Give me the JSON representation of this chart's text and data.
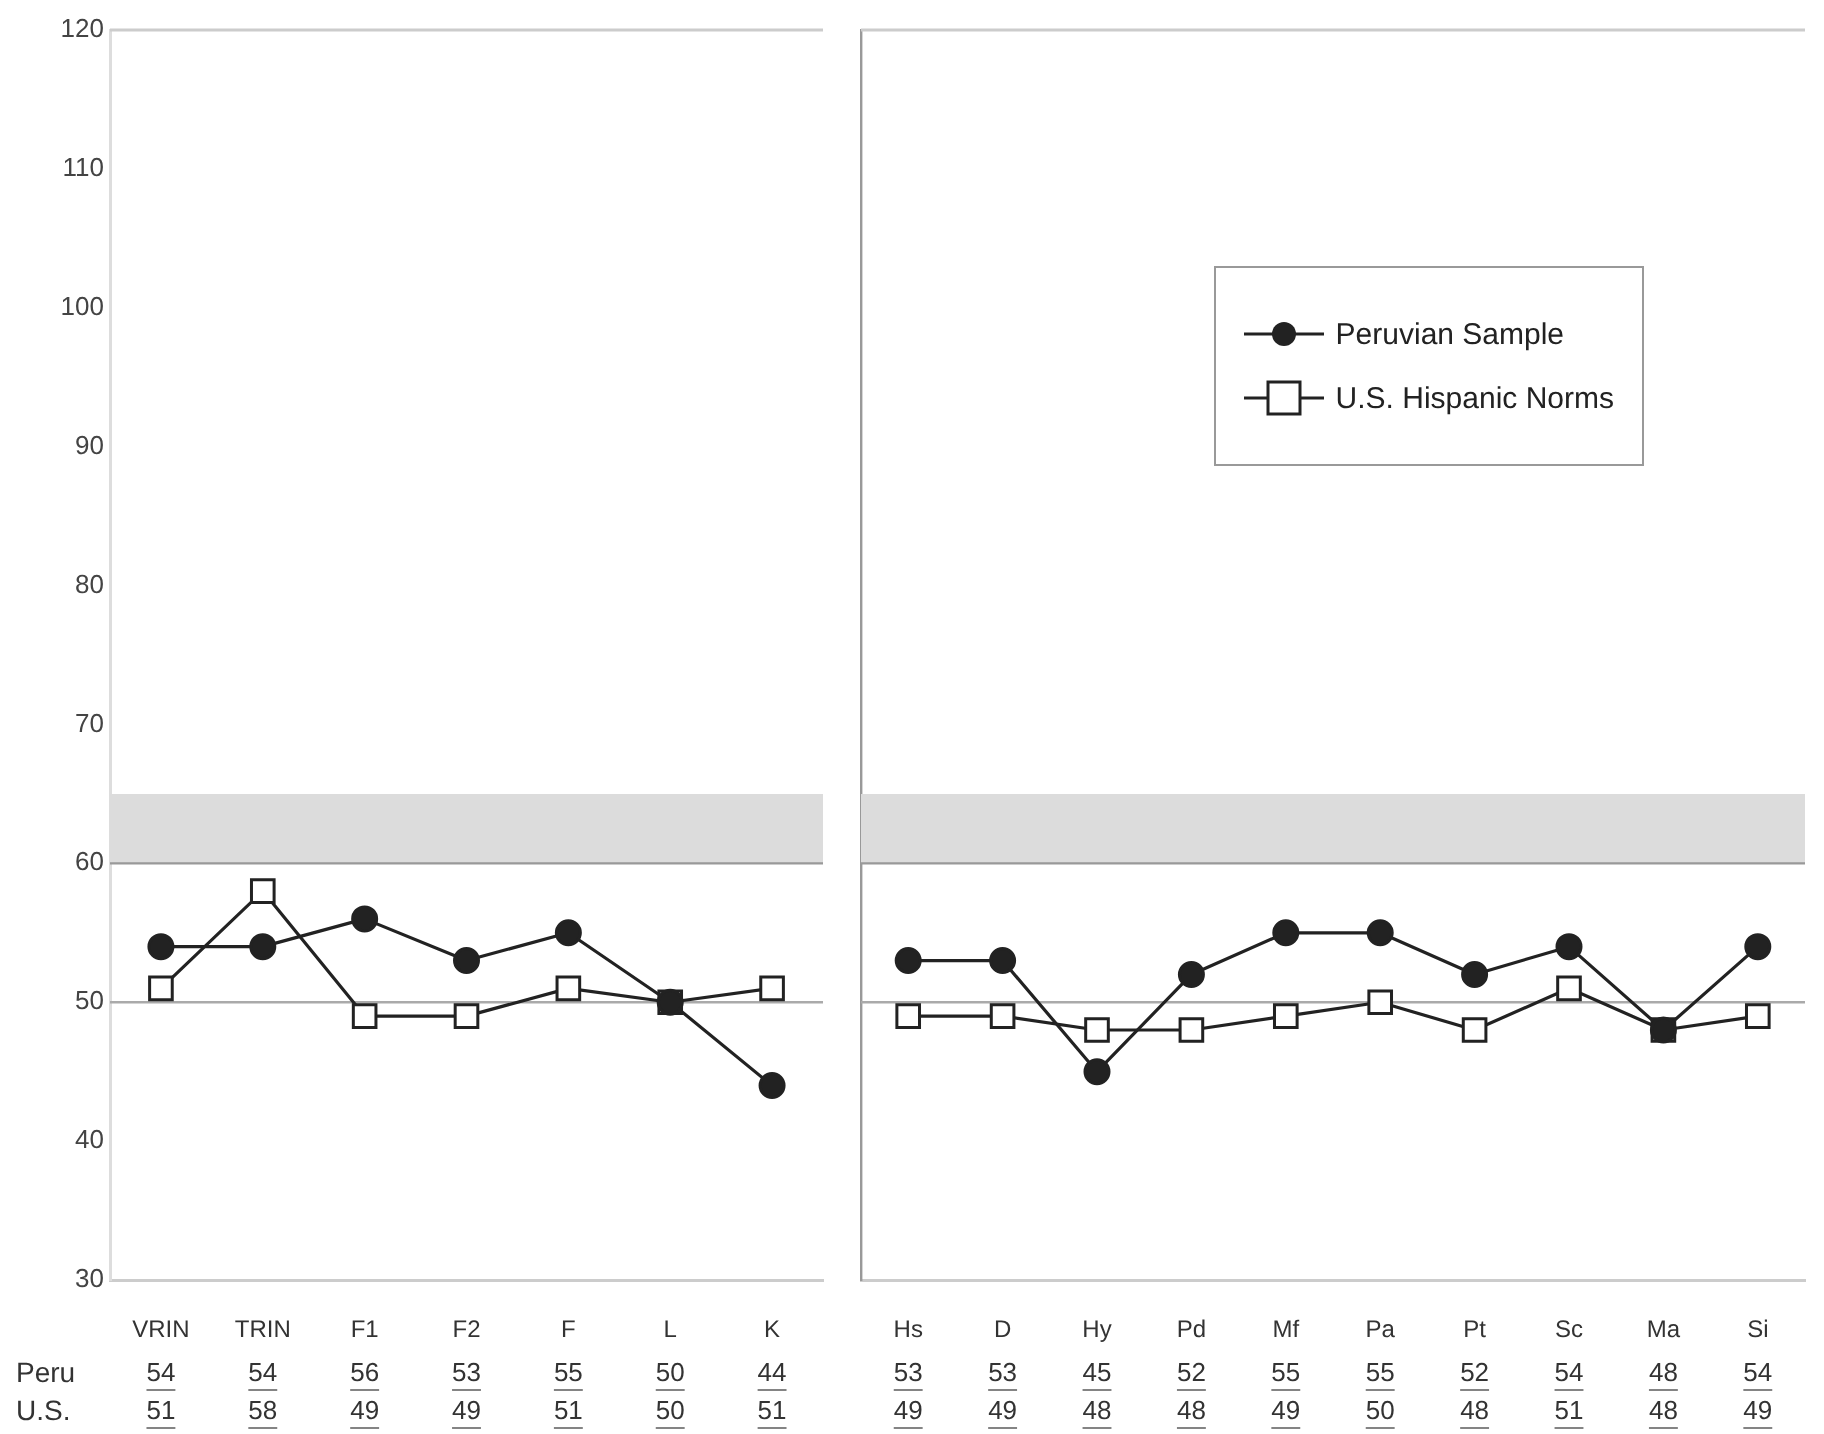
{
  "chart_data": [
    {
      "type": "line",
      "categories": [
        "VRIN",
        "TRIN",
        "F1",
        "F2",
        "F",
        "L",
        "K"
      ],
      "series": [
        {
          "color": "#222222",
          "marker": "circle",
          "values": [
            54,
            54,
            56,
            53,
            55,
            50,
            44
          ]
        },
        {
          "color": "#222222",
          "marker": "square",
          "values": [
            51,
            58,
            49,
            49,
            51,
            50,
            51
          ]
        }
      ],
      "ylim": [
        30,
        120
      ],
      "yticks": [
        30,
        40,
        50,
        60,
        70,
        80,
        90,
        100,
        110,
        120
      ],
      "grid": false,
      "legend": false,
      "data_labels": true,
      "ref_lines": [
        {
          "axis": "y",
          "value": 50,
          "color": "#aaaaaa"
        },
        {
          "axis": "y",
          "value": 60,
          "color": "#999999"
        }
      ],
      "bands": [
        {
          "axis": "y",
          "from": 60,
          "to": 65,
          "color": "#dcdcdc"
        }
      ],
      "annotations": [
        "Peru",
        "U.S."
      ]
    },
    {
      "type": "line",
      "categories": [
        "Hs",
        "D",
        "Hy",
        "Pd",
        "Mf",
        "Pa",
        "Pt",
        "Sc",
        "Ma",
        "Si"
      ],
      "series": [
        {
          "name": "Peruvian Sample",
          "color": "#222222",
          "marker": "circle",
          "values": [
            53,
            53,
            45,
            52,
            55,
            55,
            52,
            54,
            48,
            54
          ]
        },
        {
          "name": "U.S. Hispanic Norms",
          "color": "#222222",
          "marker": "square",
          "values": [
            49,
            49,
            48,
            48,
            49,
            50,
            48,
            51,
            48,
            49
          ]
        }
      ],
      "ylim": [
        30,
        120
      ],
      "yticks": [
        30,
        40,
        50,
        60,
        70,
        80,
        90,
        100,
        110,
        120
      ],
      "tick_labels": "x",
      "grid": false,
      "legend": "top right",
      "data_labels": true,
      "ref_lines": [
        {
          "axis": "y",
          "value": 50,
          "color": "#aaaaaa"
        },
        {
          "axis": "y",
          "value": 60,
          "color": "#999999"
        }
      ],
      "bands": [
        {
          "axis": "y",
          "from": 60,
          "to": 65,
          "color": "#dcdcdc"
        }
      ]
    }
  ]
}
